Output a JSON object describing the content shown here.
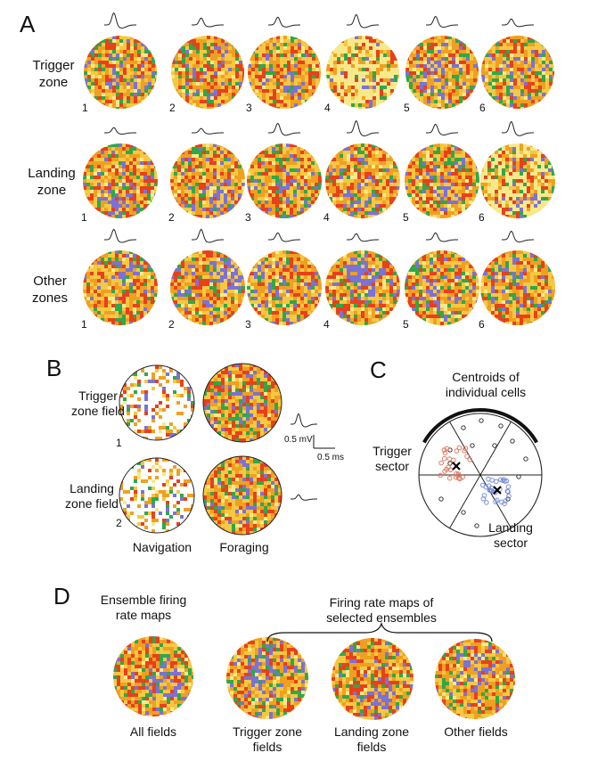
{
  "panelA": {
    "letter": "A",
    "rows": [
      {
        "label_l1": "Trigger",
        "label_l2": "zone",
        "numbers": [
          "1",
          "2",
          "3",
          "4",
          "5",
          "6"
        ]
      },
      {
        "label_l1": "Landing",
        "label_l2": "zone",
        "numbers": [
          "1",
          "2",
          "3",
          "4",
          "5",
          "6"
        ]
      },
      {
        "label_l1": "Other",
        "label_l2": "zones",
        "numbers": [
          "1",
          "2",
          "3",
          "4",
          "5",
          "6"
        ]
      }
    ]
  },
  "panelB": {
    "letter": "B",
    "row1_l1": "Trigger",
    "row1_l2": "zone field",
    "row1_num": "1",
    "row2_l1": "Landing",
    "row2_l2": "zone field",
    "row2_num": "2",
    "col1": "Navigation",
    "col2": "Foraging",
    "scale_mv": "0.5 mV",
    "scale_ms": "0.5 ms"
  },
  "panelC": {
    "letter": "C",
    "title_l1": "Centroids of",
    "title_l2": "individual cells",
    "trigger_l1": "Trigger",
    "trigger_l2": "sector",
    "landing_l1": "Landing",
    "landing_l2": "sector"
  },
  "panelD": {
    "letter": "D",
    "left_l1": "Ensemble firing",
    "left_l2": "rate maps",
    "right_l1": "Firing rate maps of",
    "right_l2": "selected ensembles",
    "maps": [
      {
        "l1": "All fields",
        "l2": ""
      },
      {
        "l1": "Trigger zone",
        "l2": "fields"
      },
      {
        "l1": "Landing zone",
        "l2": "fields"
      },
      {
        "l1": "Other fields",
        "l2": ""
      }
    ]
  },
  "colors": {
    "pale": "#f7e98a",
    "yellow": "#f5c842",
    "orange": "#f0a020",
    "red": "#e8401c",
    "green": "#2ea84a",
    "blue": "#7a72d8",
    "pink_marker": "#e07860",
    "blue_marker": "#7a90d8"
  }
}
